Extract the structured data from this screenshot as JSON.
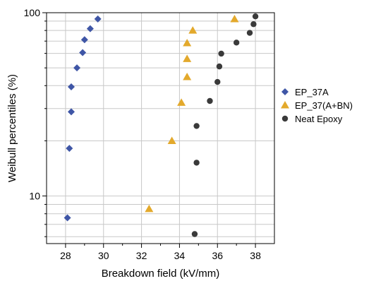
{
  "chart_data": {
    "type": "scatter",
    "title": "",
    "xlabel": "Breakdown field (kV/mm)",
    "ylabel": "Weibull percentiles (%)",
    "xlim": [
      27,
      39
    ],
    "ylim": [
      5.5,
      100
    ],
    "yscale": "log",
    "grid": true,
    "legend_position": "right",
    "x_ticks": [
      28,
      30,
      32,
      34,
      36,
      38
    ],
    "x_tick_labels": [
      "28",
      "30",
      "32",
      "34",
      "36",
      "38"
    ],
    "y_ticks": [
      10,
      100
    ],
    "y_tick_labels": [
      "10",
      "100"
    ],
    "series": [
      {
        "name": "EP_37A",
        "marker": "diamond",
        "color": "#3f56a6",
        "x": [
          28.1,
          28.2,
          28.3,
          28.3,
          28.6,
          28.9,
          29.0,
          29.3,
          29.7
        ],
        "y": [
          7.6,
          18.2,
          28.8,
          39.4,
          50.0,
          60.6,
          71.2,
          81.8,
          92.4
        ]
      },
      {
        "name": "EP_37(A+BN)",
        "marker": "triangle",
        "color": "#e3a92c",
        "x": [
          32.4,
          33.6,
          34.1,
          34.4,
          34.4,
          34.4,
          34.7,
          36.9
        ],
        "y": [
          8.5,
          20.0,
          32.3,
          44.6,
          56.0,
          68.3,
          80.0,
          92.3
        ]
      },
      {
        "name": "Neat Epoxy",
        "marker": "circle",
        "color": "#3a3a3a",
        "x": [
          34.8,
          34.9,
          34.9,
          35.6,
          36.0,
          36.1,
          36.2,
          37.0,
          37.7,
          37.9,
          38.0
        ],
        "y": [
          6.2,
          15.2,
          24.1,
          33.0,
          41.9,
          50.9,
          59.8,
          68.7,
          77.6,
          86.6,
          95.5
        ]
      }
    ]
  }
}
